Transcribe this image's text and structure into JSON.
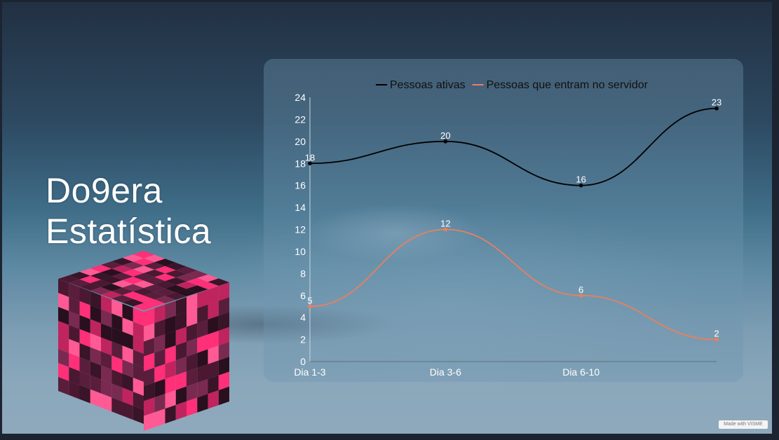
{
  "page": {
    "title_line1": "Do9era",
    "title_line2": "Estatística",
    "badge": "Made with VISME"
  },
  "chart_data": {
    "type": "line",
    "categories": [
      "Dia 1-3",
      "Dia 3-6",
      "Dia 6-10",
      ""
    ],
    "series": [
      {
        "name": "Pessoas ativas",
        "values": [
          18,
          20,
          16,
          23
        ],
        "color": "#000000"
      },
      {
        "name": "Pessoas que entram no servidor",
        "values": [
          5,
          12,
          6,
          2
        ],
        "color": "#e8805f"
      }
    ],
    "ylim": [
      0,
      24
    ],
    "yticks": [
      0,
      2,
      4,
      6,
      8,
      10,
      12,
      14,
      16,
      18,
      20,
      22,
      24
    ],
    "grid": false,
    "legend": "top",
    "smooth": true
  }
}
